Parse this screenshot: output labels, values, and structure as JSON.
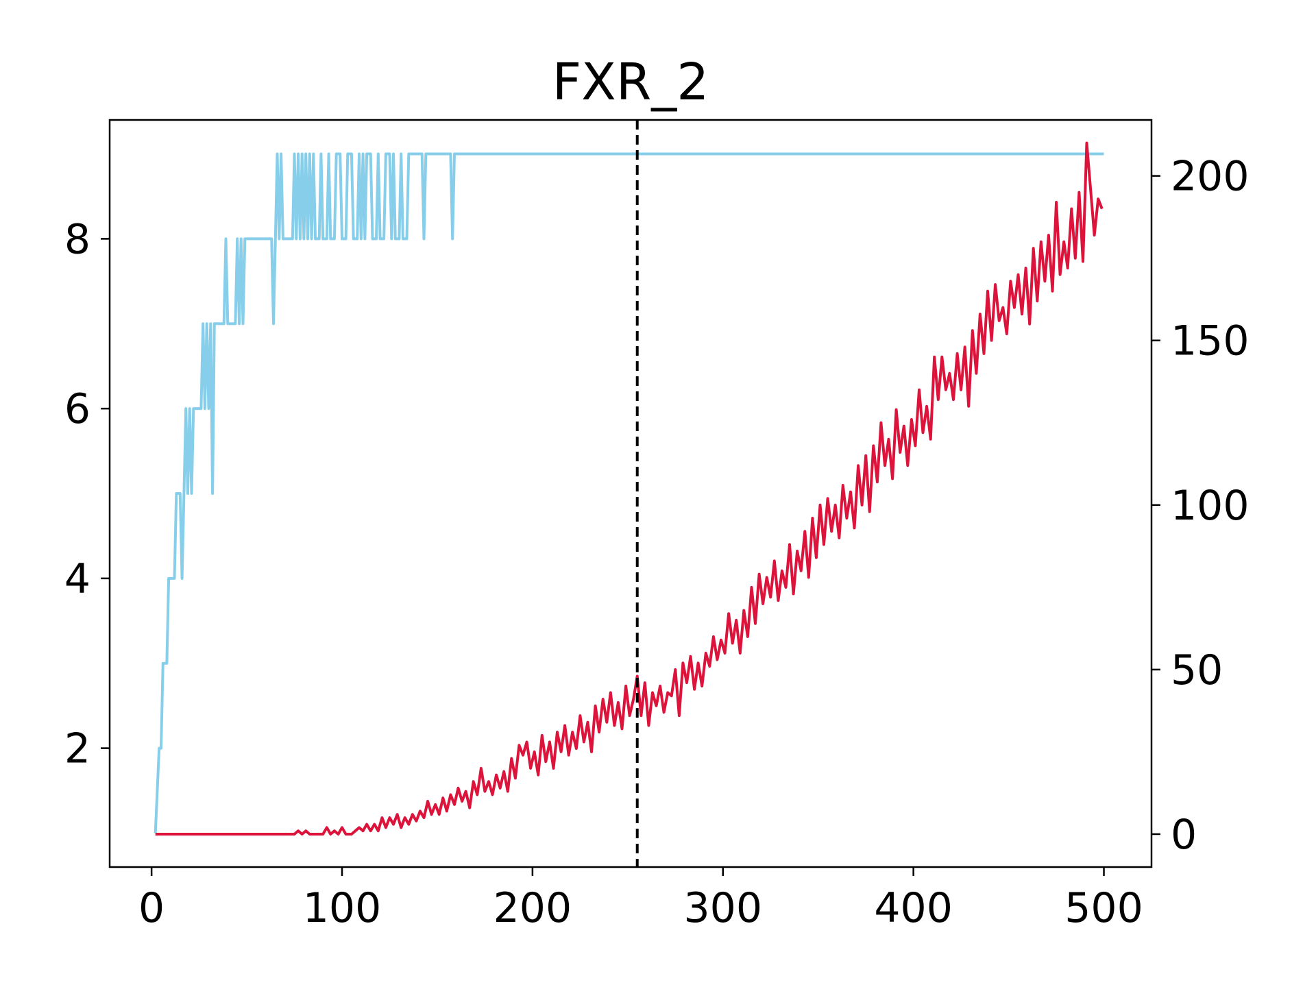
{
  "chart_data": {
    "type": "line",
    "title": "FXR_2",
    "xlabel": "",
    "ylabel_left": "",
    "ylabel_right": "",
    "xlim": [
      -22,
      525
    ],
    "ylim_left": [
      0.6,
      9.4
    ],
    "ylim_right": [
      -10,
      217
    ],
    "x_ticks": [
      0,
      100,
      200,
      300,
      400,
      500
    ],
    "y_left_ticks": [
      2,
      4,
      6,
      8
    ],
    "y_right_ticks": [
      0,
      50,
      100,
      150,
      200
    ],
    "grid": false,
    "legend": "none",
    "vline": {
      "x": 255,
      "style": "dashed",
      "color": "#000000"
    },
    "series": [
      {
        "axis": "left",
        "color": "#87ceeb",
        "points": [
          [
            2,
            1
          ],
          [
            4,
            2
          ],
          [
            5,
            2
          ],
          [
            6,
            3
          ],
          [
            8,
            3
          ],
          [
            9,
            4
          ],
          [
            12,
            4
          ],
          [
            13,
            5
          ],
          [
            15,
            5
          ],
          [
            16,
            4
          ],
          [
            17,
            5
          ],
          [
            18,
            6
          ],
          [
            19,
            5
          ],
          [
            20,
            6
          ],
          [
            21,
            5
          ],
          [
            22,
            6
          ],
          [
            26,
            6
          ],
          [
            27,
            7
          ],
          [
            28,
            6
          ],
          [
            29,
            7
          ],
          [
            30,
            6
          ],
          [
            31,
            7
          ],
          [
            32,
            5
          ],
          [
            33,
            7
          ],
          [
            38,
            7
          ],
          [
            39,
            8
          ],
          [
            40,
            7
          ],
          [
            44,
            7
          ],
          [
            45,
            8
          ],
          [
            46,
            7
          ],
          [
            47,
            8
          ],
          [
            48,
            7
          ],
          [
            49,
            8
          ],
          [
            63,
            8
          ],
          [
            64,
            7
          ],
          [
            65,
            8
          ],
          [
            66,
            9
          ],
          [
            67,
            8
          ],
          [
            68,
            9
          ],
          [
            69,
            8
          ],
          [
            74,
            8
          ],
          [
            75,
            9
          ],
          [
            76,
            8
          ],
          [
            77,
            9
          ],
          [
            78,
            8
          ],
          [
            79,
            9
          ],
          [
            80,
            8
          ],
          [
            81,
            9
          ],
          [
            82,
            8
          ],
          [
            83,
            9
          ],
          [
            84,
            8
          ],
          [
            85,
            9
          ],
          [
            86,
            8
          ],
          [
            88,
            8
          ],
          [
            89,
            9
          ],
          [
            90,
            8
          ],
          [
            92,
            8
          ],
          [
            93,
            9
          ],
          [
            94,
            8
          ],
          [
            96,
            8
          ],
          [
            97,
            9
          ],
          [
            99,
            9
          ],
          [
            100,
            8
          ],
          [
            102,
            8
          ],
          [
            103,
            9
          ],
          [
            105,
            9
          ],
          [
            106,
            8
          ],
          [
            108,
            8
          ],
          [
            109,
            9
          ],
          [
            110,
            8
          ],
          [
            111,
            9
          ],
          [
            112,
            8
          ],
          [
            113,
            9
          ],
          [
            115,
            9
          ],
          [
            116,
            8
          ],
          [
            118,
            8
          ],
          [
            119,
            9
          ],
          [
            120,
            8
          ],
          [
            122,
            8
          ],
          [
            123,
            9
          ],
          [
            125,
            9
          ],
          [
            126,
            8
          ],
          [
            127,
            9
          ],
          [
            128,
            8
          ],
          [
            130,
            8
          ],
          [
            131,
            9
          ],
          [
            132,
            8
          ],
          [
            134,
            8
          ],
          [
            135,
            9
          ],
          [
            142,
            9
          ],
          [
            143,
            8
          ],
          [
            144,
            9
          ],
          [
            157,
            9
          ],
          [
            158,
            8
          ],
          [
            159,
            9
          ],
          [
            500,
            9
          ]
        ]
      },
      {
        "axis": "right",
        "color": "#dc143c",
        "points": [
          [
            2,
            0
          ],
          [
            75,
            0
          ],
          [
            77,
            1
          ],
          [
            79,
            0
          ],
          [
            81,
            1
          ],
          [
            83,
            0
          ],
          [
            90,
            0
          ],
          [
            92,
            2
          ],
          [
            94,
            0
          ],
          [
            96,
            1
          ],
          [
            98,
            0
          ],
          [
            100,
            2
          ],
          [
            102,
            0
          ],
          [
            105,
            0
          ],
          [
            107,
            1
          ],
          [
            109,
            2
          ],
          [
            111,
            1
          ],
          [
            113,
            3
          ],
          [
            115,
            1
          ],
          [
            117,
            3
          ],
          [
            119,
            1
          ],
          [
            121,
            5
          ],
          [
            123,
            2
          ],
          [
            125,
            5
          ],
          [
            127,
            3
          ],
          [
            129,
            6
          ],
          [
            131,
            2
          ],
          [
            133,
            5
          ],
          [
            135,
            3
          ],
          [
            137,
            6
          ],
          [
            139,
            4
          ],
          [
            141,
            7
          ],
          [
            143,
            5
          ],
          [
            145,
            10
          ],
          [
            147,
            6
          ],
          [
            149,
            9
          ],
          [
            151,
            6
          ],
          [
            153,
            11
          ],
          [
            155,
            7
          ],
          [
            157,
            12
          ],
          [
            159,
            9
          ],
          [
            161,
            14
          ],
          [
            163,
            10
          ],
          [
            165,
            13
          ],
          [
            167,
            8
          ],
          [
            169,
            16
          ],
          [
            171,
            12
          ],
          [
            173,
            20
          ],
          [
            175,
            13
          ],
          [
            177,
            16
          ],
          [
            179,
            12
          ],
          [
            181,
            18
          ],
          [
            183,
            14
          ],
          [
            185,
            19
          ],
          [
            187,
            13
          ],
          [
            189,
            23
          ],
          [
            191,
            17
          ],
          [
            193,
            27
          ],
          [
            195,
            24
          ],
          [
            197,
            28
          ],
          [
            199,
            20
          ],
          [
            201,
            25
          ],
          [
            203,
            18
          ],
          [
            205,
            30
          ],
          [
            207,
            22
          ],
          [
            209,
            28
          ],
          [
            211,
            20
          ],
          [
            213,
            31
          ],
          [
            215,
            25
          ],
          [
            217,
            33
          ],
          [
            219,
            24
          ],
          [
            221,
            31
          ],
          [
            223,
            26
          ],
          [
            225,
            36
          ],
          [
            227,
            28
          ],
          [
            229,
            34
          ],
          [
            231,
            25
          ],
          [
            233,
            39
          ],
          [
            235,
            31
          ],
          [
            237,
            41
          ],
          [
            239,
            34
          ],
          [
            241,
            43
          ],
          [
            243,
            33
          ],
          [
            245,
            40
          ],
          [
            247,
            32
          ],
          [
            249,
            45
          ],
          [
            251,
            36
          ],
          [
            253,
            41
          ],
          [
            255,
            48
          ],
          [
            257,
            36
          ],
          [
            259,
            46
          ],
          [
            261,
            33
          ],
          [
            263,
            43
          ],
          [
            265,
            39
          ],
          [
            267,
            45
          ],
          [
            269,
            37
          ],
          [
            271,
            43
          ],
          [
            273,
            42
          ],
          [
            275,
            50
          ],
          [
            277,
            36
          ],
          [
            279,
            52
          ],
          [
            281,
            46
          ],
          [
            283,
            54
          ],
          [
            285,
            44
          ],
          [
            287,
            52
          ],
          [
            289,
            45
          ],
          [
            291,
            55
          ],
          [
            293,
            51
          ],
          [
            295,
            60
          ],
          [
            297,
            53
          ],
          [
            299,
            59
          ],
          [
            301,
            55
          ],
          [
            303,
            67
          ],
          [
            305,
            58
          ],
          [
            307,
            65
          ],
          [
            309,
            55
          ],
          [
            311,
            68
          ],
          [
            313,
            60
          ],
          [
            315,
            75
          ],
          [
            317,
            64
          ],
          [
            319,
            79
          ],
          [
            321,
            70
          ],
          [
            323,
            78
          ],
          [
            325,
            72
          ],
          [
            327,
            83
          ],
          [
            329,
            71
          ],
          [
            331,
            80
          ],
          [
            333,
            75
          ],
          [
            335,
            88
          ],
          [
            337,
            73
          ],
          [
            339,
            86
          ],
          [
            341,
            80
          ],
          [
            343,
            92
          ],
          [
            345,
            78
          ],
          [
            347,
            96
          ],
          [
            349,
            84
          ],
          [
            351,
            100
          ],
          [
            353,
            88
          ],
          [
            355,
            102
          ],
          [
            357,
            92
          ],
          [
            359,
            100
          ],
          [
            361,
            90
          ],
          [
            363,
            106
          ],
          [
            365,
            96
          ],
          [
            367,
            104
          ],
          [
            369,
            93
          ],
          [
            371,
            112
          ],
          [
            373,
            100
          ],
          [
            375,
            115
          ],
          [
            377,
            98
          ],
          [
            379,
            118
          ],
          [
            381,
            107
          ],
          [
            383,
            125
          ],
          [
            385,
            112
          ],
          [
            387,
            120
          ],
          [
            389,
            108
          ],
          [
            391,
            129
          ],
          [
            393,
            116
          ],
          [
            395,
            124
          ],
          [
            397,
            112
          ],
          [
            399,
            126
          ],
          [
            401,
            118
          ],
          [
            403,
            135
          ],
          [
            405,
            122
          ],
          [
            407,
            130
          ],
          [
            409,
            120
          ],
          [
            411,
            145
          ],
          [
            413,
            132
          ],
          [
            415,
            145
          ],
          [
            417,
            135
          ],
          [
            419,
            140
          ],
          [
            421,
            132
          ],
          [
            423,
            146
          ],
          [
            425,
            135
          ],
          [
            427,
            148
          ],
          [
            429,
            130
          ],
          [
            431,
            153
          ],
          [
            433,
            140
          ],
          [
            435,
            158
          ],
          [
            437,
            146
          ],
          [
            439,
            165
          ],
          [
            441,
            150
          ],
          [
            443,
            167
          ],
          [
            445,
            156
          ],
          [
            447,
            160
          ],
          [
            449,
            152
          ],
          [
            451,
            168
          ],
          [
            453,
            160
          ],
          [
            455,
            170
          ],
          [
            457,
            158
          ],
          [
            459,
            172
          ],
          [
            461,
            155
          ],
          [
            463,
            178
          ],
          [
            465,
            162
          ],
          [
            467,
            180
          ],
          [
            469,
            168
          ],
          [
            471,
            182
          ],
          [
            473,
            165
          ],
          [
            475,
            192
          ],
          [
            477,
            170
          ],
          [
            479,
            180
          ],
          [
            481,
            172
          ],
          [
            483,
            190
          ],
          [
            485,
            175
          ],
          [
            487,
            195
          ],
          [
            489,
            174
          ],
          [
            491,
            210
          ],
          [
            493,
            196
          ],
          [
            495,
            182
          ],
          [
            497,
            193
          ],
          [
            499,
            190
          ]
        ]
      }
    ]
  }
}
